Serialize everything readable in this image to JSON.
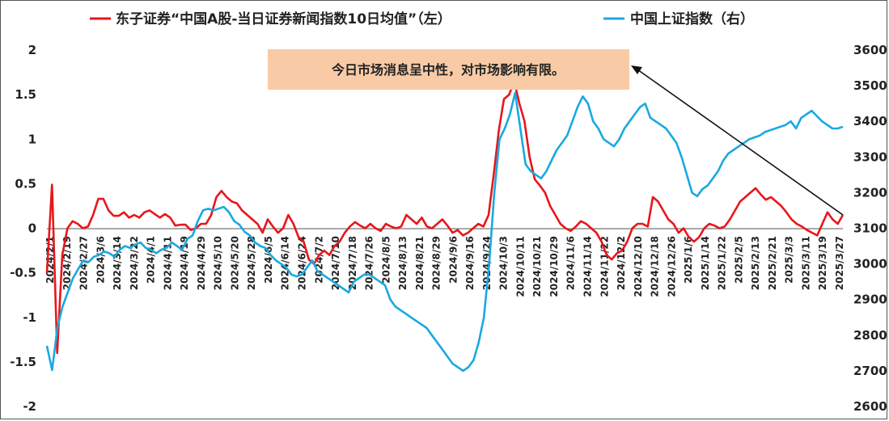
{
  "chart_data": {
    "type": "line",
    "annotation": "今日市场消息呈中性，对市场影响有限。",
    "colors": {
      "sentiment": "#e8161b",
      "index": "#1aa9e0",
      "annotation_box": "#f8cba6"
    },
    "grid": false,
    "legend_placement": "top",
    "y_left": {
      "ticks": [
        2,
        1.5,
        1,
        0.5,
        0,
        -0.5,
        -1,
        -1.5,
        -2
      ],
      "tick_labels": [
        "2",
        "1.5",
        "1",
        "0.5",
        "0",
        "-0.5",
        "-1",
        "-1.5",
        "-2"
      ],
      "lim": [
        -2,
        2
      ]
    },
    "y_right": {
      "ticks": [
        3600,
        3500,
        3400,
        3300,
        3200,
        3100,
        3000,
        2900,
        2800,
        2700,
        2600
      ],
      "lim": [
        2600,
        3600
      ]
    },
    "x_tick_labels": [
      "2024/2/1",
      "2024/2/19",
      "2024/2/27",
      "2024/3/6",
      "2024/3/14",
      "2024/3/22",
      "2024/4/1",
      "2024/4/11",
      "2024/4/19",
      "2024/4/29",
      "2024/5/10",
      "2024/5/20",
      "2024/5/28",
      "2024/6/5",
      "2024/6/14",
      "2024/6/24",
      "2024/7/2",
      "2024/7/10",
      "2024/7/18",
      "2024/7/26",
      "2024/8/5",
      "2024/8/13",
      "2024/8/21",
      "2024/8/29",
      "2024/9/6",
      "2024/9/16",
      "2024/9/24",
      "2024/10/3",
      "2024/10/11",
      "2024/10/21",
      "2024/10/29",
      "2024/11/6",
      "2024/11/14",
      "2024/11/22",
      "2024/12/2",
      "2024/12/10",
      "2024/12/18",
      "2024/12/26",
      "2025/1/6",
      "2025/1/14",
      "2025/1/22",
      "2025/2/5",
      "2025/2/13",
      "2025/2/21",
      "2025/3/3",
      "2025/3/11",
      "2025/3/19",
      "2025/3/27"
    ],
    "series": [
      {
        "name": "东子证券“中国A股-当日证券新闻指数10日均值”（左）",
        "axis": "left",
        "values": [
          -0.5,
          0.49,
          -1.4,
          -0.3,
          0.0,
          0.08,
          0.05,
          0.0,
          0.02,
          0.15,
          0.33,
          0.33,
          0.2,
          0.14,
          0.14,
          0.18,
          0.12,
          0.15,
          0.12,
          0.18,
          0.2,
          0.16,
          0.12,
          0.16,
          0.12,
          0.03,
          0.04,
          0.04,
          -0.02,
          0.0,
          0.05,
          0.05,
          0.15,
          0.35,
          0.42,
          0.35,
          0.3,
          0.28,
          0.2,
          0.15,
          0.1,
          0.05,
          -0.05,
          0.1,
          0.02,
          -0.05,
          0.0,
          0.15,
          0.05,
          -0.1,
          -0.15,
          -0.35,
          -0.4,
          -0.3,
          -0.25,
          -0.3,
          -0.2,
          -0.15,
          -0.05,
          0.02,
          0.07,
          0.03,
          0.0,
          0.05,
          0.0,
          -0.03,
          0.05,
          0.02,
          0.0,
          0.02,
          0.15,
          0.1,
          0.05,
          0.12,
          0.02,
          0.0,
          0.05,
          0.1,
          0.03,
          -0.05,
          -0.02,
          -0.08,
          -0.05,
          0.0,
          0.05,
          0.02,
          0.15,
          0.6,
          1.1,
          1.45,
          1.5,
          1.65,
          1.4,
          1.2,
          0.8,
          0.55,
          0.48,
          0.4,
          0.25,
          0.15,
          0.05,
          0.0,
          -0.03,
          0.02,
          0.08,
          0.05,
          0.0,
          -0.05,
          -0.15,
          -0.3,
          -0.35,
          -0.28,
          -0.25,
          -0.15,
          0.0,
          0.05,
          0.05,
          0.02,
          0.35,
          0.3,
          0.2,
          0.1,
          0.05,
          -0.05,
          0.0,
          -0.1,
          -0.15,
          -0.1,
          0.0,
          0.05,
          0.03,
          0.0,
          0.02,
          0.1,
          0.2,
          0.3,
          0.35,
          0.4,
          0.45,
          0.38,
          0.32,
          0.35,
          0.3,
          0.25,
          0.18,
          0.1,
          0.05,
          0.02,
          -0.02,
          -0.05,
          -0.08,
          0.05,
          0.18,
          0.1,
          0.05,
          0.15
        ]
      },
      {
        "name": "中国上证指数（右）",
        "axis": "right",
        "values": [
          2770,
          2702,
          2820,
          2880,
          2920,
          2960,
          2985,
          3010,
          3005,
          3020,
          3025,
          3035,
          3030,
          3020,
          3040,
          3050,
          3045,
          3055,
          3060,
          3045,
          3040,
          3030,
          3040,
          3045,
          3060,
          3050,
          3040,
          3070,
          3080,
          3120,
          3150,
          3155,
          3150,
          3155,
          3160,
          3145,
          3120,
          3110,
          3090,
          3080,
          3060,
          3050,
          3045,
          3025,
          3010,
          3000,
          2990,
          2970,
          2965,
          2970,
          2990,
          3010,
          2980,
          2970,
          2960,
          2950,
          2940,
          2930,
          2920,
          2950,
          2960,
          2970,
          2970,
          2960,
          2950,
          2940,
          2900,
          2880,
          2870,
          2860,
          2850,
          2840,
          2830,
          2820,
          2800,
          2780,
          2760,
          2740,
          2720,
          2710,
          2700,
          2710,
          2730,
          2780,
          2850,
          3000,
          3200,
          3350,
          3380,
          3420,
          3480,
          3380,
          3280,
          3260,
          3250,
          3240,
          3260,
          3290,
          3320,
          3340,
          3360,
          3400,
          3440,
          3470,
          3450,
          3400,
          3380,
          3350,
          3340,
          3330,
          3350,
          3380,
          3400,
          3420,
          3440,
          3450,
          3410,
          3400,
          3390,
          3380,
          3360,
          3340,
          3300,
          3250,
          3200,
          3190,
          3210,
          3220,
          3240,
          3260,
          3290,
          3310,
          3320,
          3330,
          3340,
          3350,
          3355,
          3360,
          3370,
          3375,
          3380,
          3385,
          3390,
          3400,
          3380,
          3410,
          3420,
          3430,
          3415,
          3400,
          3390,
          3380,
          3380,
          3385
        ]
      }
    ]
  }
}
